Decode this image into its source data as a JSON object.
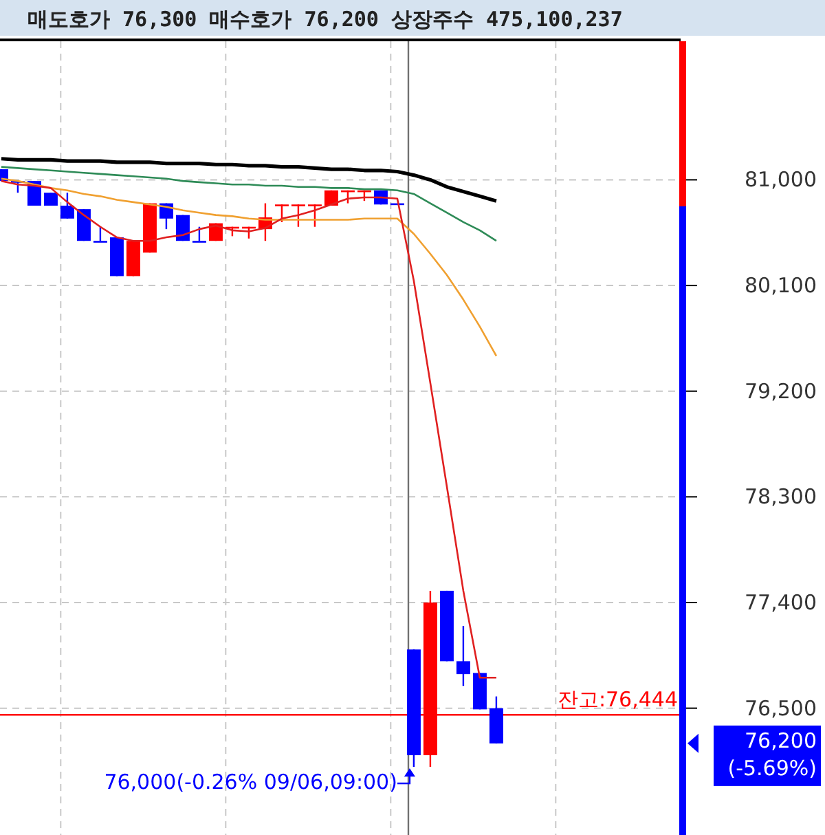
{
  "chart_data": {
    "type": "candlestick",
    "title": "매도호가 76,300 매수호가 76,200 상장주수 475,100,237",
    "categories": [
      null,
      null,
      null,
      null,
      null,
      null,
      null,
      null,
      null,
      null,
      null,
      null,
      null,
      null,
      null,
      null,
      null,
      null,
      null,
      null,
      null,
      null,
      null,
      null,
      null,
      null,
      null,
      null,
      null,
      null,
      null
    ],
    "ohlc": [
      [
        81090,
        81090,
        80990,
        80990
      ],
      [
        80990,
        80990,
        80890,
        80990
      ],
      [
        80990,
        80990,
        80780,
        80780
      ],
      [
        80890,
        80890,
        80780,
        80780
      ],
      [
        80780,
        80890,
        80670,
        80670
      ],
      [
        80750,
        80750,
        80480,
        80480
      ],
      [
        80480,
        80600,
        80480,
        80480
      ],
      [
        80510,
        80510,
        80180,
        80180
      ],
      [
        80180,
        80480,
        80180,
        80480
      ],
      [
        80380,
        80800,
        80380,
        80800
      ],
      [
        80800,
        80800,
        80580,
        80670
      ],
      [
        80700,
        80700,
        80480,
        80480
      ],
      [
        80480,
        80600,
        80480,
        80480
      ],
      [
        80480,
        80630,
        80480,
        80630
      ],
      [
        80600,
        80600,
        80520,
        80600
      ],
      [
        80600,
        80600,
        80500,
        80600
      ],
      [
        80580,
        80800,
        80480,
        80680
      ],
      [
        80790,
        80790,
        80640,
        80790
      ],
      [
        80790,
        80790,
        80600,
        80790
      ],
      [
        80790,
        80790,
        80600,
        80790
      ],
      [
        80780,
        80910,
        80780,
        80910
      ],
      [
        80910,
        80910,
        80800,
        80910
      ],
      [
        80910,
        80910,
        80820,
        80910
      ],
      [
        80910,
        80910,
        80790,
        80790
      ],
      [
        80800,
        80800,
        80800,
        80800
      ],
      [
        77000,
        77000,
        76000,
        76100
      ],
      [
        76100,
        77500,
        76000,
        77400
      ],
      [
        77500,
        77500,
        76900,
        76900
      ],
      [
        76900,
        77200,
        76690,
        76790
      ],
      [
        76800,
        76800,
        76490,
        76490
      ],
      [
        76500,
        76600,
        76200,
        76200
      ]
    ],
    "colors": [
      "#0000ff",
      "#0000ff",
      "#0000ff",
      "#0000ff",
      "#0000ff",
      "#0000ff",
      "#0000ff",
      "#0000ff",
      "#ff0000",
      "#ff0000",
      "#0000ff",
      "#0000ff",
      "#0000ff",
      "#ff0000",
      "#ff0000",
      "#ff0000",
      "#ff0000",
      "#ff0000",
      "#ff0000",
      "#ff0000",
      "#ff0000",
      "#ff0000",
      "#ff0000",
      "#0000ff",
      "#0000ff",
      "#0000ff",
      "#ff0000",
      "#0000ff",
      "#0000ff",
      "#0000ff",
      "#0000ff"
    ],
    "series": [
      {
        "type": "line",
        "color": "#000000",
        "values": [
          81180,
          81170,
          81170,
          81170,
          81160,
          81160,
          81160,
          81150,
          81150,
          81150,
          81140,
          81140,
          81140,
          81130,
          81130,
          81120,
          81120,
          81110,
          81110,
          81100,
          81090,
          81090,
          81080,
          81080,
          81070,
          81040,
          81000,
          80940,
          80900,
          80860,
          80820
        ]
      },
      {
        "type": "line",
        "color": "#2e8b57",
        "values": [
          81110,
          81100,
          81090,
          81080,
          81070,
          81060,
          81050,
          81040,
          81030,
          81020,
          81010,
          80990,
          80980,
          80970,
          80960,
          80960,
          80950,
          80950,
          80940,
          80940,
          80930,
          80930,
          80920,
          80920,
          80910,
          80880,
          80800,
          80720,
          80640,
          80570,
          80480
        ]
      },
      {
        "type": "line",
        "color": "#f0a030",
        "values": [
          81010,
          80990,
          80960,
          80930,
          80910,
          80880,
          80860,
          80830,
          80810,
          80790,
          80770,
          80740,
          80720,
          80700,
          80690,
          80670,
          80660,
          80660,
          80660,
          80660,
          80660,
          80660,
          80670,
          80670,
          80670,
          80540,
          80370,
          80190,
          79980,
          79750,
          79500
        ]
      },
      {
        "type": "line",
        "color": "#e02020",
        "values": [
          80990,
          80960,
          80950,
          80930,
          80810,
          80700,
          80600,
          80510,
          80480,
          80480,
          80510,
          80530,
          80580,
          80610,
          80570,
          80560,
          80590,
          80670,
          80700,
          80740,
          80790,
          80840,
          80850,
          80850,
          80840,
          80140,
          79270,
          78390,
          77500,
          76760,
          76760
        ]
      }
    ],
    "ylim": [
      75420,
      82180
    ],
    "yticks": [
      {
        "value": 81000,
        "label": "81,000"
      },
      {
        "value": 80100,
        "label": "80,100"
      },
      {
        "value": 79200,
        "label": "79,200"
      },
      {
        "value": 78300,
        "label": "78,300"
      },
      {
        "value": 77400,
        "label": "77,400"
      },
      {
        "value": 76500,
        "label": "76,500"
      }
    ],
    "grid": true,
    "ref_lines": [
      {
        "axis": "y",
        "value": 76444,
        "label": "잔고:76,444",
        "color": "#ff0000"
      }
    ],
    "annotations": [
      "76,000(-0.26% 09/06,09:00)",
      "76,200 (-5.69%)"
    ]
  }
}
